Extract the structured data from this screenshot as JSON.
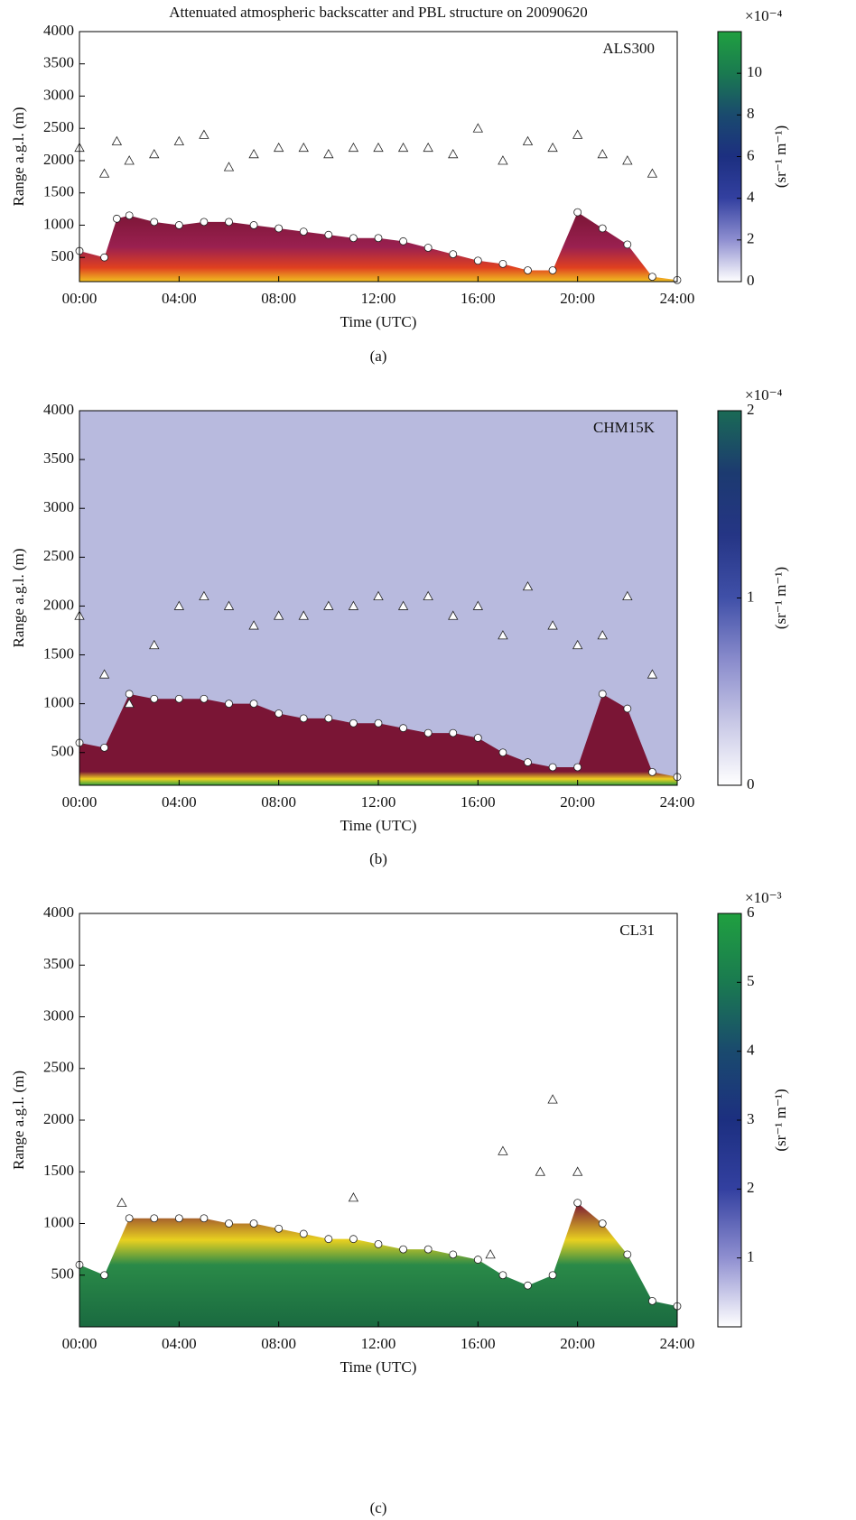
{
  "chart_data": [
    {
      "type": "profile",
      "title": "Attenuated atmospheric backscatter and PBL structure on 20090620",
      "panel_label": "(a)",
      "station_label": "ALS300",
      "xlabel": "Time (UTC)",
      "ylabel": "Range a.g.l. (m)",
      "xlim": [
        0,
        24
      ],
      "xticks": [
        {
          "value": 0,
          "label": "00:00"
        },
        {
          "value": 4,
          "label": "04:00"
        },
        {
          "value": 8,
          "label": "08:00"
        },
        {
          "value": 12,
          "label": "12:00"
        },
        {
          "value": 16,
          "label": "16:00"
        },
        {
          "value": 20,
          "label": "20:00"
        },
        {
          "value": 24,
          "label": "24:00"
        }
      ],
      "ylim": [
        125,
        4000
      ],
      "yticks": [
        500,
        1000,
        1500,
        2000,
        2500,
        3000,
        3500,
        4000
      ],
      "clim": [
        0,
        12
      ],
      "cticks": [
        0,
        2,
        4,
        6,
        8,
        10
      ],
      "colorbar_scale": "×10⁻⁴",
      "colorbar_label": "(sr⁻¹ m⁻¹)",
      "colormap": [
        "#ffffff",
        "#8f8fd0",
        "#3340a0",
        "#1c2f80",
        "#1a4a6e",
        "#1a7a50",
        "#20a040"
      ],
      "background": "#ffffff",
      "layer_color": "#7a1535",
      "series": [
        {
          "marker": "circle",
          "x": [
            0,
            1,
            1.5,
            2,
            3,
            4,
            5,
            6,
            7,
            8,
            9,
            10,
            11,
            12,
            13,
            14,
            15,
            16,
            17,
            18,
            19,
            20,
            21,
            22,
            23,
            24
          ],
          "values": [
            600,
            500,
            1100,
            1150,
            1050,
            1000,
            1050,
            1050,
            1000,
            950,
            900,
            850,
            800,
            800,
            750,
            650,
            550,
            450,
            400,
            300,
            300,
            1200,
            950,
            700,
            200,
            150
          ]
        },
        {
          "marker": "triangle",
          "x": [
            0,
            1,
            1.5,
            2,
            3,
            4,
            5,
            6,
            7,
            8,
            9,
            10,
            11,
            12,
            13,
            14,
            15,
            16,
            17,
            18,
            19,
            20,
            21,
            22,
            23
          ],
          "values": [
            2200,
            1800,
            2300,
            2000,
            2100,
            2300,
            2400,
            1900,
            2100,
            2200,
            2200,
            2100,
            2200,
            2200,
            2200,
            2200,
            2100,
            2500,
            2000,
            2300,
            2200,
            2400,
            2100,
            2000,
            1800
          ]
        }
      ]
    },
    {
      "type": "profile",
      "panel_label": "(b)",
      "station_label": "CHM15K",
      "xlabel": "Time (UTC)",
      "ylabel": "Range a.g.l. (m)",
      "xlim": [
        0,
        24
      ],
      "xticks": [
        {
          "value": 0,
          "label": "00:00"
        },
        {
          "value": 4,
          "label": "04:00"
        },
        {
          "value": 8,
          "label": "08:00"
        },
        {
          "value": 12,
          "label": "12:00"
        },
        {
          "value": 16,
          "label": "16:00"
        },
        {
          "value": 20,
          "label": "20:00"
        },
        {
          "value": 24,
          "label": "24:00"
        }
      ],
      "ylim": [
        165,
        4000
      ],
      "yticks": [
        500,
        1000,
        1500,
        2000,
        2500,
        3000,
        3500,
        4000
      ],
      "clim": [
        0,
        2
      ],
      "cticks": [
        0,
        1,
        2
      ],
      "colorbar_scale": "×10⁻⁴",
      "colorbar_label": "(sr⁻¹ m⁻¹)",
      "colormap": [
        "#ffffff",
        "#c8c8e6",
        "#8a8ccc",
        "#4050a8",
        "#253585",
        "#1c3a70",
        "#1a6a55"
      ],
      "background": "#b8bade",
      "layer_color": "#7a1535",
      "series": [
        {
          "marker": "circle",
          "x": [
            0,
            1,
            2,
            3,
            4,
            5,
            6,
            7,
            8,
            9,
            10,
            11,
            12,
            13,
            14,
            15,
            16,
            17,
            18,
            19,
            20,
            21,
            22,
            23,
            24
          ],
          "values": [
            600,
            550,
            1100,
            1050,
            1050,
            1050,
            1000,
            1000,
            900,
            850,
            850,
            800,
            800,
            750,
            700,
            700,
            650,
            500,
            400,
            350,
            350,
            1100,
            950,
            300,
            250
          ]
        },
        {
          "marker": "triangle",
          "x": [
            0,
            1,
            2,
            3,
            4,
            5,
            6,
            7,
            8,
            9,
            10,
            11,
            12,
            13,
            14,
            15,
            16,
            17,
            18,
            19,
            20,
            21,
            22,
            23
          ],
          "values": [
            1900,
            1300,
            1000,
            1600,
            2000,
            2100,
            2000,
            1800,
            1900,
            1900,
            2000,
            2000,
            2100,
            2000,
            2100,
            1900,
            2000,
            1700,
            2200,
            1800,
            1600,
            1700,
            2100,
            1300
          ]
        }
      ]
    },
    {
      "type": "profile",
      "panel_label": "(c)",
      "station_label": "CL31",
      "xlabel": "Time (UTC)",
      "ylabel": "Range a.g.l. (m)",
      "xlim": [
        0,
        24
      ],
      "xticks": [
        {
          "value": 0,
          "label": "00:00"
        },
        {
          "value": 4,
          "label": "04:00"
        },
        {
          "value": 8,
          "label": "08:00"
        },
        {
          "value": 12,
          "label": "12:00"
        },
        {
          "value": 16,
          "label": "16:00"
        },
        {
          "value": 20,
          "label": "20:00"
        },
        {
          "value": 24,
          "label": "24:00"
        }
      ],
      "ylim": [
        0,
        4000
      ],
      "yticks": [
        500,
        1000,
        1500,
        2000,
        2500,
        3000,
        3500,
        4000
      ],
      "clim": [
        0,
        6
      ],
      "cticks": [
        1,
        2,
        3,
        4,
        5,
        6
      ],
      "colorbar_scale": "×10⁻³",
      "colorbar_label": "(sr⁻¹ m⁻¹)",
      "colormap": [
        "#ffffff",
        "#8f8fd0",
        "#3340a0",
        "#1c2f80",
        "#1a4a6e",
        "#1a7a50",
        "#20a040"
      ],
      "background": "#ffffff",
      "layer_color": "#7a1535",
      "series": [
        {
          "marker": "circle",
          "x": [
            0,
            1,
            2,
            3,
            4,
            5,
            6,
            7,
            8,
            9,
            10,
            11,
            12,
            13,
            14,
            15,
            16,
            17,
            18,
            19,
            20,
            21,
            22,
            23,
            24
          ],
          "values": [
            600,
            500,
            1050,
            1050,
            1050,
            1050,
            1000,
            1000,
            950,
            900,
            850,
            850,
            800,
            750,
            750,
            700,
            650,
            500,
            400,
            500,
            1200,
            1000,
            700,
            250,
            200
          ]
        },
        {
          "marker": "triangle",
          "x": [
            1.7,
            11,
            16.5,
            17,
            18.5,
            19,
            20
          ],
          "values": [
            1200,
            1250,
            700,
            1700,
            1500,
            2200,
            1500
          ]
        }
      ]
    }
  ]
}
